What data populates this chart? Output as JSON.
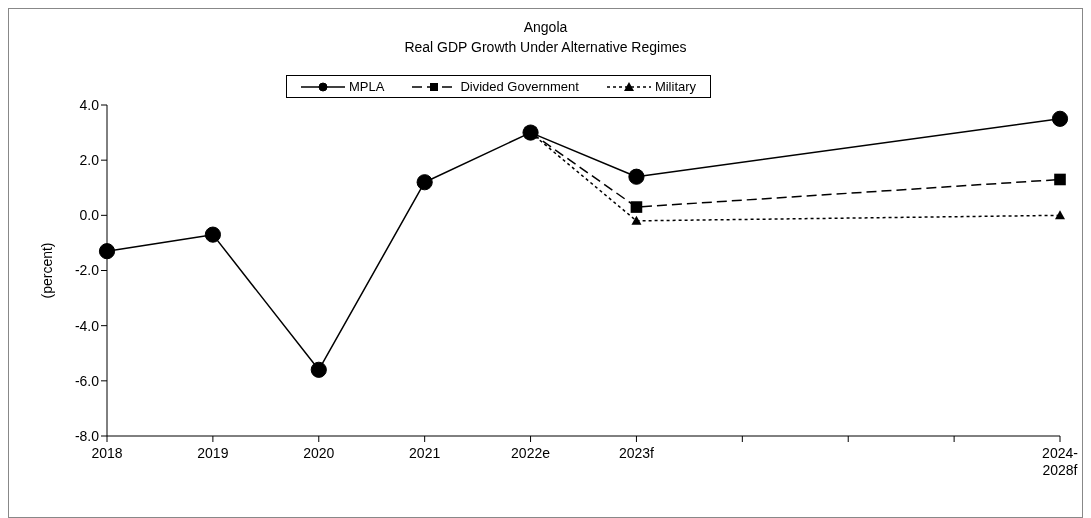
{
  "chart_data": {
    "type": "line",
    "title": "Angola",
    "subtitle": "Real GDP Growth Under Alternative Regimes",
    "ylabel": "(percent)",
    "categories": [
      "2018",
      "2019",
      "2020",
      "2021",
      "2022e",
      "2023f",
      null,
      null,
      null,
      "2024-2028f"
    ],
    "series": [
      {
        "name": "MPLA",
        "color": "#000000",
        "marker": "circle",
        "line_style": "solid",
        "values": [
          -1.3,
          -0.7,
          -5.6,
          1.2,
          3.0,
          1.4,
          null,
          null,
          null,
          3.5
        ]
      },
      {
        "name": "Divided Government",
        "color": "#000000",
        "marker": "square",
        "line_style": "dashed",
        "values": [
          null,
          null,
          null,
          null,
          3.0,
          0.3,
          null,
          null,
          null,
          1.3
        ]
      },
      {
        "name": "Military",
        "color": "#000000",
        "marker": "triangle",
        "line_style": "dotted",
        "values": [
          null,
          null,
          null,
          null,
          3.0,
          -0.2,
          null,
          null,
          null,
          0.0
        ]
      }
    ],
    "ylim": [
      -8,
      4
    ],
    "yticks": [
      {
        "value": -8,
        "label": "-8.0"
      },
      {
        "value": -6,
        "label": "-6.0"
      },
      {
        "value": -4,
        "label": "-4.0"
      },
      {
        "value": -2,
        "label": "-2.0"
      },
      {
        "value": 0,
        "label": "0.0"
      },
      {
        "value": 2,
        "label": "2.0"
      },
      {
        "value": 4,
        "label": "4.0"
      }
    ],
    "grid": false,
    "legend": "top"
  }
}
